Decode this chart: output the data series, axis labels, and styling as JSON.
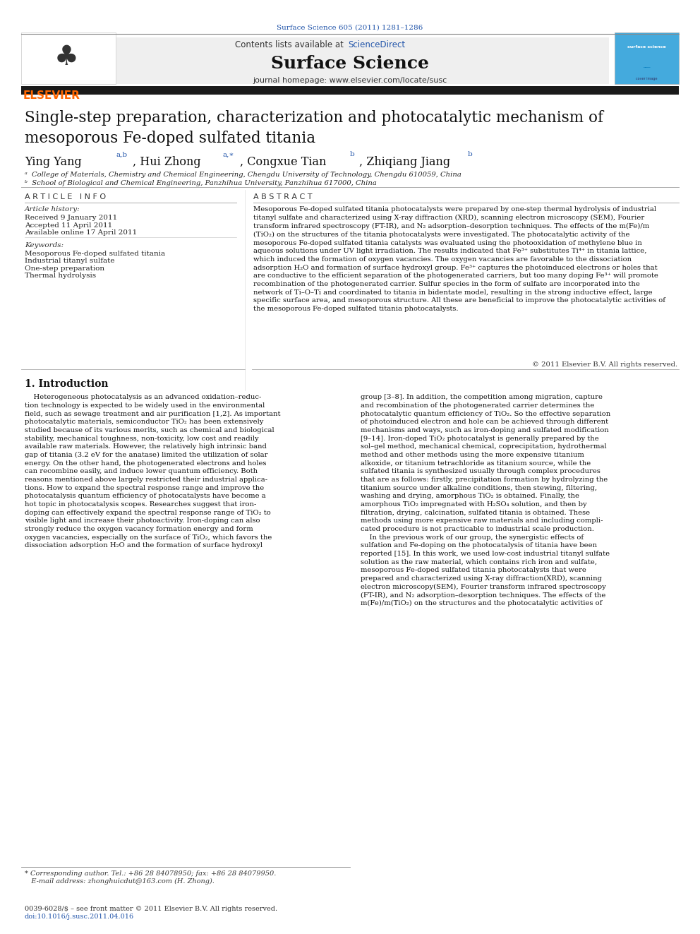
{
  "page_width": 9.92,
  "page_height": 13.23,
  "bg_color": "#ffffff",
  "journal_ref": "Surface Science 605 (2011) 1281–1286",
  "journal_ref_color": "#2255aa",
  "sciencedirect_color": "#2255aa",
  "elsevier_color": "#ff6600",
  "thick_bar_color": "#1a1a1a",
  "article_title": "Single-step preparation, characterization and photocatalytic mechanism of\nmesoporous Fe-doped sulfated titania",
  "affil_a": "ᵃ  College of Materials, Chemistry and Chemical Engineering, Chengdu University of Technology, Chengdu 610059, China",
  "affil_b": "ᵇ  School of Biological and Chemical Engineering, Panzhihua University, Panzhihua 617000, China",
  "article_info_title": "A R T I C L E   I N F O",
  "abstract_title": "A B S T R A C T",
  "article_history_label": "Article history:",
  "received": "Received 9 January 2011",
  "accepted": "Accepted 11 April 2011",
  "available": "Available online 17 April 2011",
  "keywords_label": "Keywords:",
  "kw1": "Mesoporous Fe-doped sulfated titania",
  "kw2": "Industrial titanyl sulfate",
  "kw3": "One-step preparation",
  "kw4": "Thermal hydrolysis",
  "abstract_text": "Mesoporous Fe-doped sulfated titania photocatalysts were prepared by one-step thermal hydrolysis of industrial\ntitanyl sulfate and characterized using X-ray diffraction (XRD), scanning electron microscopy (SEM), Fourier\ntransform infrared spectroscopy (FT-IR), and N₂ adsorption–desorption techniques. The effects of the m(Fe)/m\n(TiO₂) on the structures of the titania photocatalysts were investigated. The photocatalytic activity of the\nmesoporous Fe-doped sulfated titania catalysts was evaluated using the photooxidation of methylene blue in\naqueous solutions under UV light irradiation. The results indicated that Fe³⁺ substitutes Ti⁴⁺ in titania lattice,\nwhich induced the formation of oxygen vacancies. The oxygen vacancies are favorable to the dissociation\nadsorption H₂O and formation of surface hydroxyl group. Fe³⁺ captures the photoinduced electrons or holes that\nare conductive to the efficient separation of the photogenerated carriers, but too many doping Fe³⁺ will promote\nrecombination of the photogenerated carrier. Sulfur species in the form of sulfate are incorporated into the\nnetwork of Ti–O–Ti and coordinated to titania in bidentate model, resulting in the strong inductive effect, large\nspecific surface area, and mesoporous structure. All these are beneficial to improve the photocatalytic activities of\nthe mesoporous Fe-doped sulfated titania photocatalysts.",
  "copyright": "© 2011 Elsevier B.V. All rights reserved.",
  "intro_title": "1. Introduction",
  "intro_col1": "    Heterogeneous photocatalysis as an advanced oxidation–reduc-\ntion technology is expected to be widely used in the environmental\nfield, such as sewage treatment and air purification [1,2]. As important\nphotocatalytic materials, semiconductor TiO₂ has been extensively\nstudied because of its various merits, such as chemical and biological\nstability, mechanical toughness, non-toxicity, low cost and readily\navailable raw materials. However, the relatively high intrinsic band\ngap of titania (3.2 eV for the anatase) limited the utilization of solar\nenergy. On the other hand, the photogenerated electrons and holes\ncan recombine easily, and induce lower quantum efficiency. Both\nreasons mentioned above largely restricted their industrial applica-\ntions. How to expand the spectral response range and improve the\nphotocatalysis quantum efficiency of photocatalysts have become a\nhot topic in photocatalysis scopes. Researches suggest that iron-\ndoping can effectively expand the spectral response range of TiO₂ to\nvisible light and increase their photoactivity. Iron-doping can also\nstrongly reduce the oxygen vacancy formation energy and form\noxygen vacancies, especially on the surface of TiO₂, which favors the\ndissociation adsorption H₂O and the formation of surface hydroxyl",
  "intro_col2": "group [3–8]. In addition, the competition among migration, capture\nand recombination of the photogenerated carrier determines the\nphotocatalytic quantum efficiency of TiO₂. So the effective separation\nof photoinduced electron and hole can be achieved through different\nmechanisms and ways, such as iron-doping and sulfated modification\n[9–14]. Iron-doped TiO₂ photocatalyst is generally prepared by the\nsol–gel method, mechanical chemical, coprecipitation, hydrothermal\nmethod and other methods using the more expensive titanium\nalkoxide, or titanium tetrachloride as titanium source, while the\nsulfated titania is synthesized usually through complex procedures\nthat are as follows: firstly, precipitation formation by hydrolyzing the\ntitanium source under alkaline conditions, then stewing, filtering,\nwashing and drying, amorphous TiO₂ is obtained. Finally, the\namorphous TiO₂ impregnated with H₂SO₄ solution, and then by\nfiltration, drying, calcination, sulfated titania is obtained. These\nmethods using more expensive raw materials and including compli-\ncated procedure is not practicable to industrial scale production.\n    In the previous work of our group, the synergistic effects of\nsulfation and Fe-doping on the photocatalysis of titania have been\nreported [15]. In this work, we used low-cost industrial titanyl sulfate\nsolution as the raw material, which contains rich iron and sulfate,\nmesoporous Fe-doped sulfated titania photocatalysts that were\nprepared and characterized using X-ray diffraction(XRD), scanning\nelectron microscopy(SEM), Fourier transform infrared spectroscopy\n(FT-IR), and N₂ adsorption–desorption techniques. The effects of the\nm(Fe)/m(TiO₂) on the structures and the photocatalytic activities of",
  "footnote1": "* Corresponding author. Tel.: +86 28 84078950; fax: +86 28 84079950.",
  "footnote2": "   E-mail address: zhonghuicdut@163.com (H. Zhong).",
  "footnote3": "0039-6028/$ – see front matter © 2011 Elsevier B.V. All rights reserved.",
  "footnote4": "doi:10.1016/j.susc.2011.04.016",
  "link_color": "#2255aa"
}
